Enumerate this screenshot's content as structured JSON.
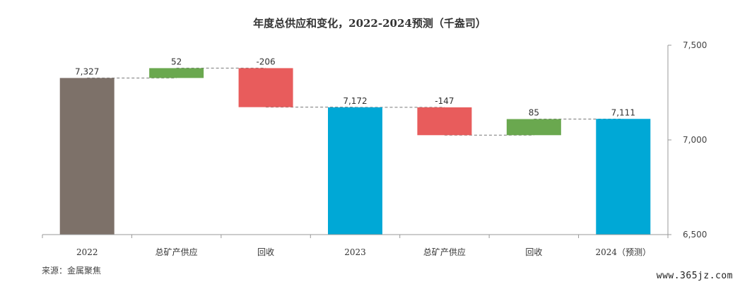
{
  "chart_data": {
    "type": "waterfall",
    "title": "年度总供应和变化，2022-2024预测（千盎司）",
    "categories": [
      "2022",
      "总矿产供应",
      "回收",
      "2023",
      "总矿产供应",
      "回收",
      "2024（预测）"
    ],
    "steps": [
      {
        "kind": "total",
        "value": 7327,
        "label": "7,327"
      },
      {
        "kind": "delta",
        "value": 52,
        "label": "52"
      },
      {
        "kind": "delta",
        "value": -206,
        "label": "-206"
      },
      {
        "kind": "total",
        "value": 7172,
        "label": "7,172"
      },
      {
        "kind": "delta",
        "value": -147,
        "label": "-147"
      },
      {
        "kind": "delta",
        "value": 85,
        "label": "85"
      },
      {
        "kind": "total",
        "value": 7111,
        "label": "7,111"
      }
    ],
    "ylim": [
      6500,
      7500
    ],
    "yticks": [
      {
        "value": 6500,
        "label": "6,500"
      },
      {
        "value": 7000,
        "label": "7,000"
      },
      {
        "value": 7500,
        "label": "7,500"
      }
    ],
    "yaxis_side": "right",
    "colors": {
      "first_total": "#7d7169",
      "total": "#00a8d6",
      "increase": "#6aa84f",
      "decrease": "#e85c5c",
      "connector": "#777777",
      "axis": "#999999"
    },
    "source": "来源：金属聚焦"
  },
  "watermark": "www.365jz.com"
}
